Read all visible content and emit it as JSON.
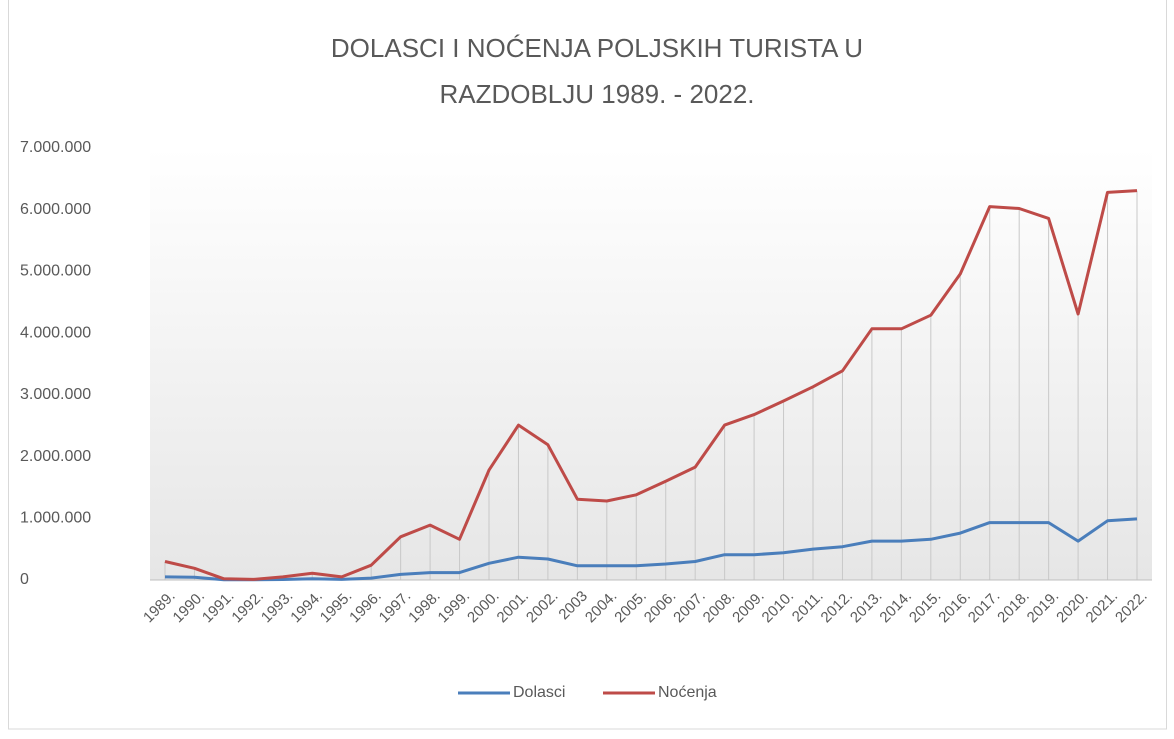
{
  "chart_data": {
    "type": "line",
    "title": "DOLASCI I NOĆENJA POLJSKIH TURISTA U",
    "subtitle": "RAZDOBLJU 1989. - 2022.",
    "categories": [
      "1989.",
      "1990.",
      "1991.",
      "1992.",
      "1993.",
      "1994.",
      "1995.",
      "1996.",
      "1997.",
      "1998.",
      "1999.",
      "2000.",
      "2001.",
      "2002.",
      "2003",
      "2004.",
      "2005.",
      "2006.",
      "2007.",
      "2008.",
      "2009.",
      "2010.",
      "2011.",
      "2012.",
      "2013.",
      "2014.",
      "2015.",
      "2016.",
      "2017.",
      "2018.",
      "2019.",
      "2020.",
      "2021.",
      "2022."
    ],
    "series": [
      {
        "name": "Dolasci",
        "color": "#4a7ebb",
        "values": [
          50000,
          45000,
          5000,
          3000,
          8000,
          20000,
          10000,
          30000,
          90000,
          120000,
          120000,
          270000,
          370000,
          340000,
          230000,
          230000,
          230000,
          260000,
          300000,
          410000,
          410000,
          440000,
          500000,
          540000,
          630000,
          630000,
          660000,
          760000,
          930000,
          930000,
          930000,
          630000,
          960000,
          990000
        ]
      },
      {
        "name": "Noćenja",
        "color": "#be4b48",
        "values": [
          300000,
          190000,
          20000,
          10000,
          50000,
          110000,
          50000,
          240000,
          700000,
          890000,
          660000,
          1780000,
          2510000,
          2190000,
          1310000,
          1280000,
          1380000,
          1600000,
          1830000,
          2510000,
          2680000,
          2900000,
          3130000,
          3390000,
          4070000,
          4070000,
          4290000,
          4960000,
          6050000,
          6020000,
          5860000,
          4310000,
          6280000,
          6310000
        ]
      }
    ],
    "ylim": [
      0,
      7000000
    ],
    "yticks": [
      0,
      {
        "value": 1000000,
        "label": "1.000.000"
      },
      {
        "value": 2000000,
        "label": "2.000.000"
      },
      {
        "value": 3000000,
        "label": "3.000.000"
      },
      {
        "value": 4000000,
        "label": "4.000.000"
      },
      {
        "value": 5000000,
        "label": "5.000.000"
      },
      {
        "value": 6000000,
        "label": "6.000.000"
      },
      {
        "value": 7000000,
        "label": "7.000.000"
      }
    ],
    "grid": false,
    "drop_lines": true,
    "legend": "bottom"
  }
}
